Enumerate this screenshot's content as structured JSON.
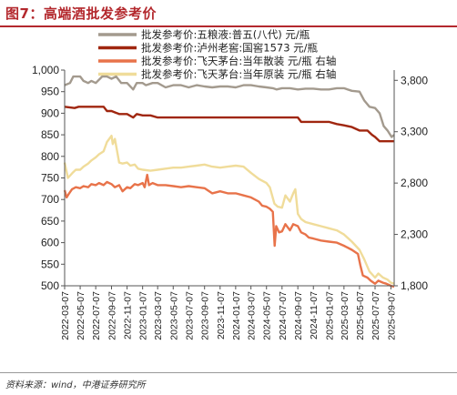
{
  "figure": {
    "title": "图7：高端酒批发参考价",
    "source": "资料来源：wind，中港证券研究所"
  },
  "chart_data": {
    "type": "line",
    "title": "",
    "xlabel": "",
    "ylabel": "",
    "x_ticks": [
      "2022-03-07",
      "2022-05-07",
      "2022-07-07",
      "2022-09-07",
      "2022-11-07",
      "2023-01-07",
      "2023-03-07",
      "2023-05-07",
      "2023-07-07",
      "2023-09-07",
      "2023-11-07",
      "2024-01-07",
      "2024-03-07",
      "2024-05-07",
      "2024-07-07",
      "2024-09-07",
      "2024-11-07",
      "2025-01-07",
      "2025-03-07",
      "2025-05-07",
      "2025-07-07",
      "2025-09-07"
    ],
    "x_range": [
      "2022-03-07",
      "2025-09-20"
    ],
    "y_left": {
      "min": 500,
      "max": 1000,
      "ticks": [
        500,
        550,
        600,
        650,
        700,
        750,
        800,
        850,
        900,
        950,
        1000
      ],
      "tick_labels": [
        "500",
        "550",
        "600",
        "650",
        "700",
        "750",
        "800",
        "850",
        "900",
        "950",
        "1,000"
      ]
    },
    "y_right": {
      "min": 1800,
      "max": 3900,
      "ticks": [
        1800,
        2300,
        2800,
        3300,
        3800
      ],
      "tick_labels": [
        "1,800",
        "2,300",
        "2,800",
        "3,300",
        "3,800"
      ]
    },
    "grid": false,
    "legend_position": "top",
    "series": [
      {
        "name": "批发参考价:五粮液:普五(八代) 元/瓶",
        "axis": "left",
        "color": "#a39a8e",
        "points": [
          [
            "2022-03-07",
            965
          ],
          [
            "2022-03-28",
            970
          ],
          [
            "2022-04-10",
            985
          ],
          [
            "2022-05-07",
            985
          ],
          [
            "2022-05-20",
            975
          ],
          [
            "2022-06-07",
            970
          ],
          [
            "2022-06-20",
            975
          ],
          [
            "2022-07-07",
            970
          ],
          [
            "2022-08-01",
            985
          ],
          [
            "2022-08-20",
            985
          ],
          [
            "2022-09-07",
            980
          ],
          [
            "2022-09-25",
            985
          ],
          [
            "2022-10-15",
            970
          ],
          [
            "2022-11-07",
            970
          ],
          [
            "2022-12-01",
            955
          ],
          [
            "2022-12-15",
            970
          ],
          [
            "2023-01-07",
            970
          ],
          [
            "2023-01-20",
            965
          ],
          [
            "2023-02-15",
            970
          ],
          [
            "2023-03-07",
            970
          ],
          [
            "2023-04-07",
            960
          ],
          [
            "2023-05-07",
            965
          ],
          [
            "2023-06-07",
            965
          ],
          [
            "2023-07-07",
            960
          ],
          [
            "2023-08-07",
            965
          ],
          [
            "2023-09-07",
            962
          ],
          [
            "2023-10-07",
            960
          ],
          [
            "2023-11-07",
            962
          ],
          [
            "2023-12-07",
            962
          ],
          [
            "2024-01-07",
            960
          ],
          [
            "2024-02-07",
            965
          ],
          [
            "2024-03-07",
            965
          ],
          [
            "2024-04-07",
            962
          ],
          [
            "2024-05-07",
            960
          ],
          [
            "2024-06-01",
            958
          ],
          [
            "2024-06-15",
            955
          ],
          [
            "2024-07-07",
            958
          ],
          [
            "2024-08-07",
            958
          ],
          [
            "2024-09-07",
            955
          ],
          [
            "2024-10-07",
            957
          ],
          [
            "2024-11-07",
            957
          ],
          [
            "2024-12-07",
            955
          ],
          [
            "2025-01-07",
            955
          ],
          [
            "2025-02-07",
            958
          ],
          [
            "2025-03-07",
            958
          ],
          [
            "2025-04-07",
            952
          ],
          [
            "2025-05-07",
            950
          ],
          [
            "2025-05-25",
            930
          ],
          [
            "2025-06-15",
            915
          ],
          [
            "2025-07-07",
            912
          ],
          [
            "2025-07-25",
            900
          ],
          [
            "2025-08-10",
            870
          ],
          [
            "2025-08-25",
            860
          ],
          [
            "2025-09-10",
            845
          ],
          [
            "2025-09-20",
            850
          ]
        ]
      },
      {
        "name": "批发参考价:泸州老窖:国窖1573 元/瓶",
        "axis": "left",
        "color": "#a0260f",
        "points": [
          [
            "2022-03-07",
            915
          ],
          [
            "2022-04-15",
            912
          ],
          [
            "2022-05-01",
            915
          ],
          [
            "2022-07-07",
            915
          ],
          [
            "2022-08-07",
            915
          ],
          [
            "2022-08-20",
            905
          ],
          [
            "2022-09-07",
            905
          ],
          [
            "2022-10-07",
            898
          ],
          [
            "2022-11-07",
            898
          ],
          [
            "2022-12-01",
            890
          ],
          [
            "2022-12-15",
            898
          ],
          [
            "2023-01-07",
            895
          ],
          [
            "2023-02-07",
            895
          ],
          [
            "2023-03-07",
            890
          ],
          [
            "2023-05-07",
            890
          ],
          [
            "2023-07-07",
            890
          ],
          [
            "2023-09-07",
            890
          ],
          [
            "2023-11-07",
            890
          ],
          [
            "2024-01-07",
            890
          ],
          [
            "2024-03-07",
            890
          ],
          [
            "2024-05-07",
            890
          ],
          [
            "2024-07-07",
            890
          ],
          [
            "2024-09-07",
            890
          ],
          [
            "2024-09-20",
            880
          ],
          [
            "2024-11-07",
            880
          ],
          [
            "2025-01-07",
            880
          ],
          [
            "2025-02-07",
            875
          ],
          [
            "2025-03-07",
            872
          ],
          [
            "2025-04-07",
            868
          ],
          [
            "2025-05-07",
            860
          ],
          [
            "2025-06-07",
            860
          ],
          [
            "2025-06-25",
            850
          ],
          [
            "2025-07-07",
            845
          ],
          [
            "2025-07-25",
            835
          ],
          [
            "2025-08-15",
            835
          ],
          [
            "2025-09-20",
            835
          ]
        ]
      },
      {
        "name": "批发参考价:飞天茅台:当年散装 元/瓶 右轴",
        "axis": "right",
        "color": "#e8734a",
        "points": [
          [
            "2022-03-07",
            2730
          ],
          [
            "2022-03-15",
            2660
          ],
          [
            "2022-03-25",
            2700
          ],
          [
            "2022-04-05",
            2740
          ],
          [
            "2022-04-20",
            2760
          ],
          [
            "2022-05-07",
            2750
          ],
          [
            "2022-05-20",
            2770
          ],
          [
            "2022-06-07",
            2760
          ],
          [
            "2022-06-20",
            2790
          ],
          [
            "2022-07-07",
            2780
          ],
          [
            "2022-07-20",
            2800
          ],
          [
            "2022-08-07",
            2780
          ],
          [
            "2022-08-20",
            2810
          ],
          [
            "2022-09-07",
            2790
          ],
          [
            "2022-09-20",
            2760
          ],
          [
            "2022-10-07",
            2780
          ],
          [
            "2022-10-20",
            2720
          ],
          [
            "2022-11-07",
            2760
          ],
          [
            "2022-11-20",
            2750
          ],
          [
            "2022-12-07",
            2790
          ],
          [
            "2022-12-20",
            2780
          ],
          [
            "2023-01-07",
            2800
          ],
          [
            "2023-01-15",
            2760
          ],
          [
            "2023-01-25",
            2880
          ],
          [
            "2023-02-01",
            2780
          ],
          [
            "2023-02-15",
            2800
          ],
          [
            "2023-03-07",
            2780
          ],
          [
            "2023-04-07",
            2780
          ],
          [
            "2023-05-07",
            2770
          ],
          [
            "2023-06-07",
            2760
          ],
          [
            "2023-07-07",
            2770
          ],
          [
            "2023-08-07",
            2760
          ],
          [
            "2023-09-07",
            2750
          ],
          [
            "2023-10-07",
            2700
          ],
          [
            "2023-11-07",
            2720
          ],
          [
            "2023-12-07",
            2700
          ],
          [
            "2024-01-07",
            2700
          ],
          [
            "2024-02-07",
            2680
          ],
          [
            "2024-03-07",
            2660
          ],
          [
            "2024-04-07",
            2620
          ],
          [
            "2024-04-20",
            2580
          ],
          [
            "2024-05-07",
            2570
          ],
          [
            "2024-05-20",
            2550
          ],
          [
            "2024-06-01",
            2520
          ],
          [
            "2024-06-08",
            2190
          ],
          [
            "2024-06-14",
            2380
          ],
          [
            "2024-06-25",
            2320
          ],
          [
            "2024-07-07",
            2330
          ],
          [
            "2024-07-20",
            2400
          ],
          [
            "2024-08-07",
            2340
          ],
          [
            "2024-08-20",
            2400
          ],
          [
            "2024-09-07",
            2380
          ],
          [
            "2024-09-20",
            2320
          ],
          [
            "2024-10-07",
            2300
          ],
          [
            "2024-10-20",
            2270
          ],
          [
            "2024-11-07",
            2260
          ],
          [
            "2024-12-07",
            2240
          ],
          [
            "2025-01-07",
            2230
          ],
          [
            "2025-02-07",
            2220
          ],
          [
            "2025-03-07",
            2190
          ],
          [
            "2025-04-07",
            2150
          ],
          [
            "2025-05-01",
            2110
          ],
          [
            "2025-05-10",
            2000
          ],
          [
            "2025-05-20",
            1900
          ],
          [
            "2025-06-07",
            1880
          ],
          [
            "2025-06-20",
            1850
          ],
          [
            "2025-07-07",
            1820
          ],
          [
            "2025-07-20",
            1850
          ],
          [
            "2025-08-07",
            1830
          ],
          [
            "2025-08-20",
            1820
          ],
          [
            "2025-09-07",
            1800
          ],
          [
            "2025-09-20",
            1790
          ]
        ]
      },
      {
        "name": "批发参考价:飞天茅台:当年原装 元/瓶 右轴",
        "axis": "right",
        "color": "#f0dc9a",
        "points": [
          [
            "2022-03-07",
            3000
          ],
          [
            "2022-03-20",
            2850
          ],
          [
            "2022-04-07",
            2900
          ],
          [
            "2022-04-20",
            2930
          ],
          [
            "2022-05-07",
            2930
          ],
          [
            "2022-05-20",
            2960
          ],
          [
            "2022-06-07",
            2990
          ],
          [
            "2022-06-20",
            3020
          ],
          [
            "2022-07-07",
            3050
          ],
          [
            "2022-07-20",
            3080
          ],
          [
            "2022-08-07",
            3110
          ],
          [
            "2022-08-20",
            3200
          ],
          [
            "2022-09-07",
            3260
          ],
          [
            "2022-09-12",
            3180
          ],
          [
            "2022-09-20",
            3230
          ],
          [
            "2022-10-07",
            3000
          ],
          [
            "2022-10-20",
            2990
          ],
          [
            "2022-11-07",
            3000
          ],
          [
            "2022-11-20",
            2970
          ],
          [
            "2022-12-07",
            2980
          ],
          [
            "2022-12-20",
            2940
          ],
          [
            "2023-01-07",
            2930
          ],
          [
            "2023-02-07",
            2920
          ],
          [
            "2023-03-07",
            2930
          ],
          [
            "2023-04-07",
            2940
          ],
          [
            "2023-05-07",
            2950
          ],
          [
            "2023-06-07",
            2950
          ],
          [
            "2023-07-07",
            2960
          ],
          [
            "2023-08-07",
            2970
          ],
          [
            "2023-09-07",
            2980
          ],
          [
            "2023-10-07",
            2960
          ],
          [
            "2023-11-07",
            2950
          ],
          [
            "2023-12-07",
            2960
          ],
          [
            "2024-01-07",
            2970
          ],
          [
            "2024-02-07",
            2960
          ],
          [
            "2024-03-07",
            2900
          ],
          [
            "2024-04-07",
            2840
          ],
          [
            "2024-05-07",
            2800
          ],
          [
            "2024-05-20",
            2760
          ],
          [
            "2024-06-07",
            2600
          ],
          [
            "2024-06-20",
            2570
          ],
          [
            "2024-07-07",
            2560
          ],
          [
            "2024-07-20",
            2680
          ],
          [
            "2024-08-07",
            2620
          ],
          [
            "2024-08-20",
            2700
          ],
          [
            "2024-08-28",
            2740
          ],
          [
            "2024-09-07",
            2500
          ],
          [
            "2024-09-20",
            2450
          ],
          [
            "2024-10-07",
            2420
          ],
          [
            "2024-11-07",
            2400
          ],
          [
            "2024-12-07",
            2380
          ],
          [
            "2025-01-07",
            2360
          ],
          [
            "2025-02-07",
            2340
          ],
          [
            "2025-03-07",
            2300
          ],
          [
            "2025-04-07",
            2230
          ],
          [
            "2025-05-07",
            2150
          ],
          [
            "2025-05-25",
            2060
          ],
          [
            "2025-06-15",
            1940
          ],
          [
            "2025-07-07",
            1880
          ],
          [
            "2025-07-20",
            1920
          ],
          [
            "2025-08-07",
            1880
          ],
          [
            "2025-08-25",
            1860
          ],
          [
            "2025-09-07",
            1830
          ],
          [
            "2025-09-20",
            1820
          ]
        ]
      }
    ]
  }
}
